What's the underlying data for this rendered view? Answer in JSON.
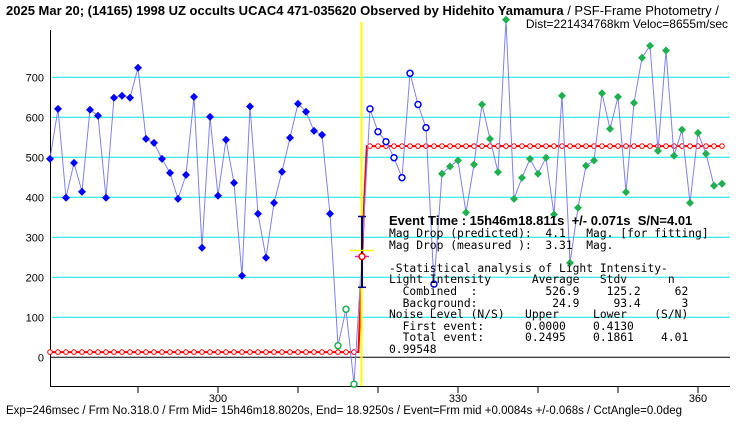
{
  "header": {
    "title_bold": "2025 Mar 20; (14165) 1998 UZ occults UCAC4 471-035620 Observed by Hidehito Yamamura",
    "title_suffix": " / PSF-Frame Photometry /",
    "subtitle": "Dist=221434768km Veloc=8655m/sec"
  },
  "footer": "Exp=246msec / Frm No.318.0 / Frm Mid= 15h46m18.8020s,  End= 18.9250s / Event=Frm mid +0.0084s +/-0.068s / CctAngle=0.0deg",
  "stats": {
    "event_time": "Event Time : 15h46m18.811s  +/- 0.071s  S/N=4.01",
    "lines": [
      "Mag Drop (predicted):  4.1   Mag. [for fitting]",
      "Mag Drop (measured ):  3.31  Mag.",
      "",
      "-Statistical analysis of Light Intensity-",
      "Light Intensity      Average   Stdv      n",
      "  Combined  :          526.9    125.2     62",
      "  Background:           24.9     93.4      3",
      "Noise Level (N/S)   Upper     Lower    (S/N)",
      "  First event:      0.0000    0.4130",
      "  Total event:      0.2495    0.1861    4.01",
      "0.99548"
    ]
  },
  "colors": {
    "grid": "#00e5e5",
    "series": "#8080f0",
    "pre": "#0000ff",
    "post": "#20b050",
    "fit": "#ff0000",
    "event": "#ffff00",
    "errbar": "#000080"
  },
  "chart_data": {
    "type": "scatter",
    "xlabel": "",
    "ylabel": "",
    "xlim": [
      277.5,
      364.5
    ],
    "ylim": [
      -75,
      820
    ],
    "x_ticks": [
      290,
      300,
      310,
      320,
      330,
      340,
      350,
      360
    ],
    "x_tick_labels": [
      "300",
      "330",
      "360"
    ],
    "y_ticks": [
      0,
      100,
      200,
      300,
      400,
      500,
      600,
      700
    ],
    "x_start_frame": 279,
    "values": [
      496,
      621,
      399,
      486,
      414,
      619,
      604,
      399,
      649,
      654,
      649,
      724,
      546,
      536,
      496,
      461,
      396,
      456,
      651,
      274,
      601,
      404,
      544,
      436,
      204,
      627,
      359,
      249,
      386,
      464,
      549,
      634,
      614,
      566,
      556,
      359,
      29,
      120,
      -67,
      260,
      621,
      564,
      539,
      499,
      449,
      710,
      632,
      574,
      183,
      459,
      477,
      492,
      362,
      482,
      632,
      546,
      463,
      844,
      396,
      449,
      496,
      459,
      499,
      357,
      654,
      236,
      374,
      479,
      492,
      660,
      571,
      651,
      413,
      636,
      749,
      779,
      516,
      767,
      504,
      569,
      386,
      561,
      509,
      429,
      434
    ],
    "marker_groups": [
      {
        "name": "before-event",
        "from": 279,
        "to": 314,
        "style": "filled-blue"
      },
      {
        "name": "transition-low",
        "from": 315,
        "to": 317,
        "style": "hollow-green"
      },
      {
        "name": "event-point",
        "from": 318,
        "to": 318,
        "style": "hidden"
      },
      {
        "name": "after-event-blue",
        "from": 319,
        "to": 327,
        "style": "hollow-blue"
      },
      {
        "name": "after-event",
        "from": 328,
        "to": 363,
        "style": "filled-green"
      }
    ],
    "fit": {
      "background": 13,
      "plateau": 528,
      "event_frame": 318.0,
      "event_value": 252,
      "error_low": 175,
      "error_high": 352
    },
    "event_line_frame": 318
  }
}
